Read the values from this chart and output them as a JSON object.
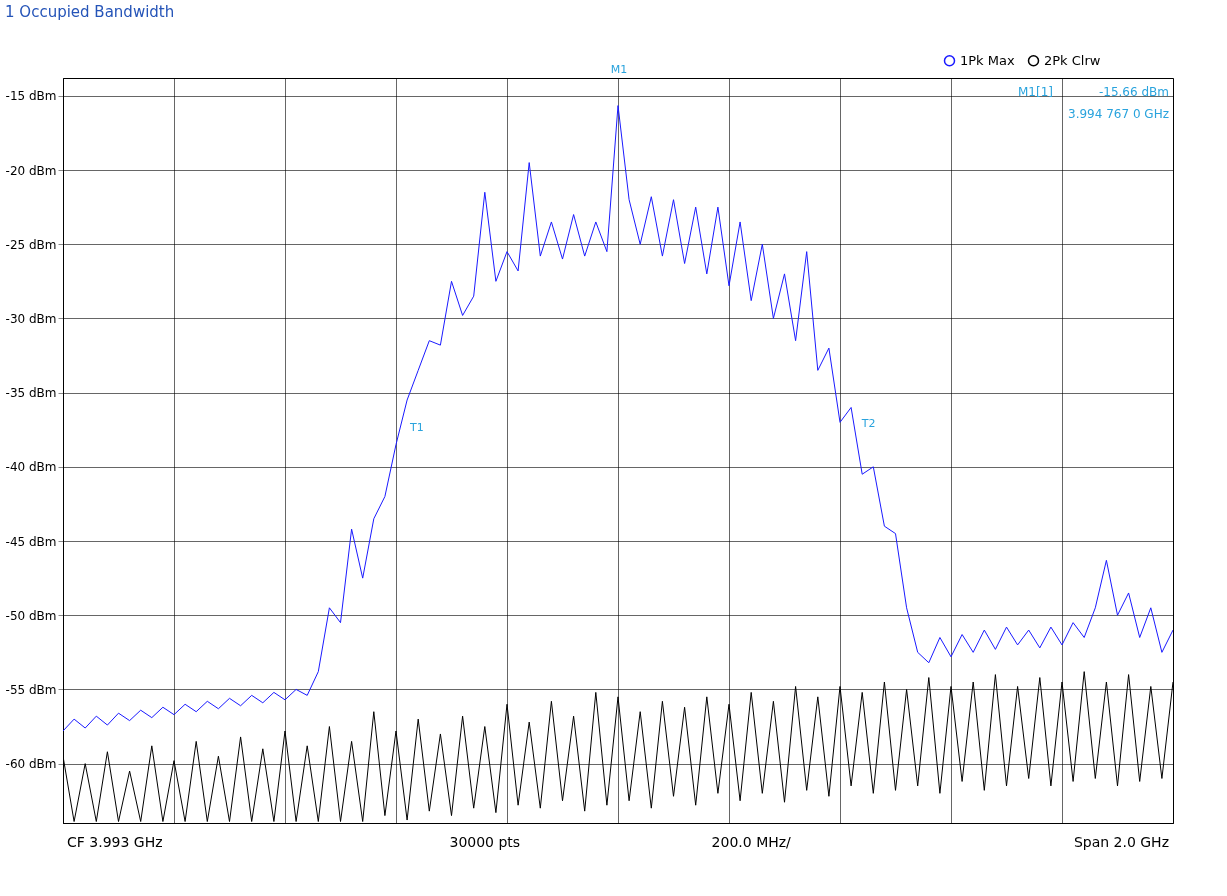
{
  "chart_data": {
    "type": "line",
    "title": "1 Occupied Bandwidth",
    "categories": [
      null,
      null,
      null,
      null,
      null,
      null,
      null,
      null,
      null,
      null,
      null,
      null,
      null,
      null,
      null,
      null,
      null,
      null,
      null,
      null,
      null,
      null,
      null,
      null,
      null,
      null,
      null,
      null,
      null,
      null,
      null,
      null,
      null,
      null,
      null,
      null,
      null,
      null,
      null,
      null,
      null,
      null,
      null,
      null,
      null,
      null,
      null,
      null,
      null,
      null,
      null,
      null,
      null,
      null,
      null,
      null,
      null,
      null,
      null,
      null,
      null,
      null,
      null,
      null,
      null,
      null,
      null,
      null,
      null,
      null,
      null,
      null,
      null,
      null,
      null,
      null,
      null,
      null,
      null,
      null,
      null,
      null,
      null,
      null,
      null,
      null,
      null,
      null,
      null,
      null,
      null,
      null,
      null,
      null,
      null,
      null,
      null,
      null,
      null,
      null,
      null
    ],
    "series": [
      {
        "name": "1Pk Max",
        "color": "#1a1aff",
        "values": [
          -57.8,
          -57.0,
          -57.6,
          -56.8,
          -57.4,
          -56.6,
          -57.1,
          -56.4,
          -56.9,
          -56.2,
          -56.7,
          -56.0,
          -56.5,
          -55.8,
          -56.3,
          -55.6,
          -56.1,
          -55.4,
          -55.9,
          -55.2,
          -55.7,
          -55.0,
          -55.4,
          -53.8,
          -49.5,
          -50.5,
          -44.2,
          -47.5,
          -43.5,
          -42.0,
          -38.5,
          -35.5,
          -33.5,
          -31.5,
          -31.8,
          -27.5,
          -29.8,
          -28.5,
          -21.5,
          -27.5,
          -25.5,
          -26.8,
          -19.5,
          -25.8,
          -23.5,
          -26.0,
          -23.0,
          -25.8,
          -23.5,
          -25.5,
          -15.66,
          -22.0,
          -25.0,
          -21.8,
          -25.8,
          -22.0,
          -26.3,
          -22.5,
          -27.0,
          -22.5,
          -27.8,
          -23.5,
          -28.8,
          -25.0,
          -30.0,
          -27.0,
          -31.5,
          -25.5,
          -33.5,
          -32.0,
          -37.0,
          -36.0,
          -40.5,
          -40.0,
          -44.0,
          -44.5,
          -49.5,
          -52.5,
          -53.2,
          -51.5,
          -52.8,
          -51.3,
          -52.5,
          -51.0,
          -52.3,
          -50.8,
          -52.0,
          -51.0,
          -52.2,
          -50.8,
          -52.0,
          -50.5,
          -51.5,
          -49.5,
          -46.3,
          -50.0,
          -48.5,
          -51.5,
          -49.5,
          -52.5,
          -51.0
        ]
      },
      {
        "name": "2Pk Clrw",
        "color": "#000000",
        "values": [
          -59.5,
          -63.9,
          -60.0,
          -63.9,
          -59.2,
          -63.9,
          -60.5,
          -63.9,
          -58.8,
          -63.9,
          -59.8,
          -63.9,
          -58.5,
          -63.9,
          -59.5,
          -63.9,
          -58.2,
          -63.9,
          -59.0,
          -63.9,
          -57.8,
          -63.9,
          -58.8,
          -63.9,
          -57.5,
          -63.9,
          -58.5,
          -63.9,
          -56.5,
          -63.5,
          -57.8,
          -63.8,
          -57.0,
          -63.2,
          -58.0,
          -63.5,
          -56.8,
          -63.0,
          -57.5,
          -63.3,
          -56.0,
          -62.8,
          -57.2,
          -63.0,
          -55.8,
          -62.5,
          -56.8,
          -63.2,
          -55.2,
          -62.8,
          -55.5,
          -62.5,
          -56.5,
          -63.0,
          -55.8,
          -62.2,
          -56.2,
          -62.8,
          -55.5,
          -62.0,
          -56.0,
          -62.5,
          -55.2,
          -62.0,
          -55.8,
          -62.6,
          -54.8,
          -61.8,
          -55.5,
          -62.2,
          -54.8,
          -61.5,
          -55.2,
          -62.0,
          -54.5,
          -61.8,
          -55.0,
          -61.5,
          -54.2,
          -62.0,
          -54.8,
          -61.2,
          -54.5,
          -61.8,
          -54.0,
          -61.5,
          -54.8,
          -61.0,
          -54.2,
          -61.5,
          -54.5,
          -61.2,
          -53.8,
          -61.0,
          -54.5,
          -61.5,
          -54.0,
          -61.2,
          -54.8,
          -61.0,
          -54.5
        ]
      }
    ],
    "ylim": [
      -64,
      -13.8
    ],
    "yticks": [
      {
        "value": -15,
        "label": "-15 dBm"
      },
      {
        "value": -20,
        "label": "-20 dBm"
      },
      {
        "value": -25,
        "label": "-25 dBm"
      },
      {
        "value": -30,
        "label": "-30 dBm"
      },
      {
        "value": -35,
        "label": "-35 dBm"
      },
      {
        "value": -40,
        "label": "-40 dBm"
      },
      {
        "value": -45,
        "label": "-45 dBm"
      },
      {
        "value": -50,
        "label": "-50 dBm"
      },
      {
        "value": -55,
        "label": "-55 dBm"
      },
      {
        "value": -60,
        "label": "-60 dBm"
      }
    ],
    "tick_labels": "y",
    "grid": true,
    "legend": "top right",
    "marker": "none",
    "line_style": "solid",
    "annotations": [
      "M1[1]",
      "-15.66 dBm",
      "3.994 767 0 GHz",
      "CF 3.993 GHz",
      "30000 pts",
      "200.0 MHz/",
      "Span 2.0 GHz",
      "M1",
      "T1",
      "T2"
    ]
  }
}
